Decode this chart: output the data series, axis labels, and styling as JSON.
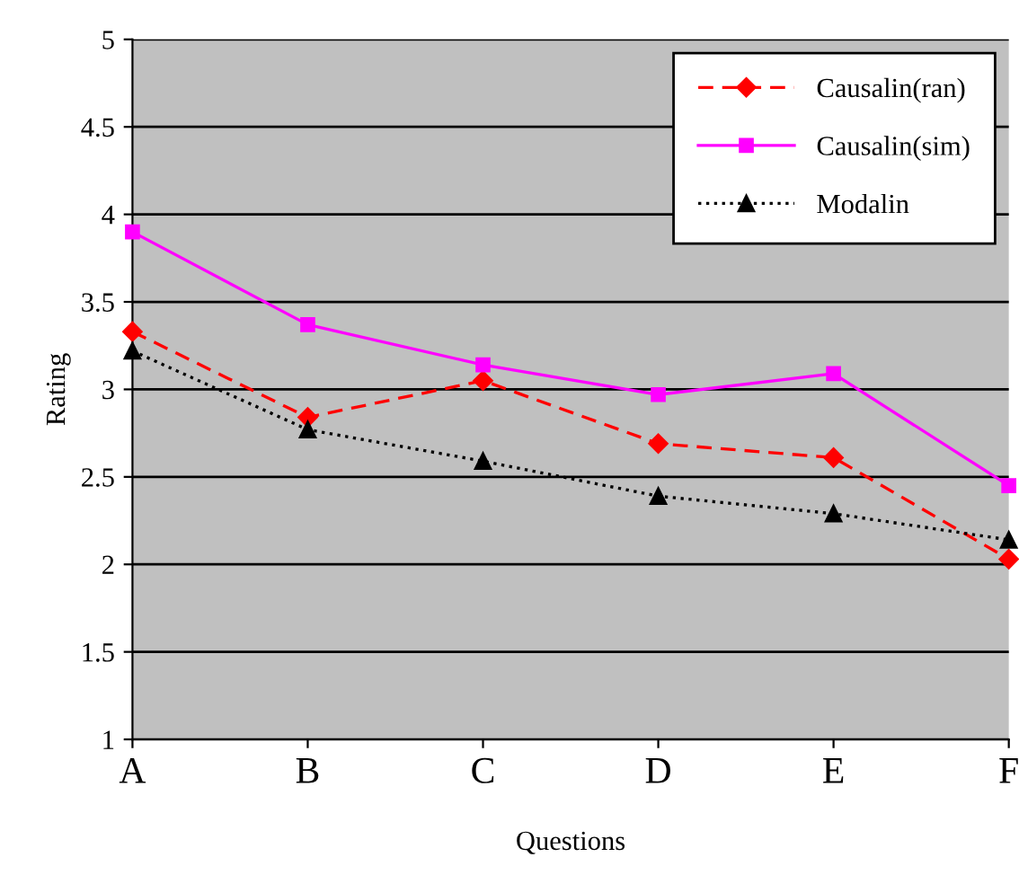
{
  "chart_data": {
    "type": "line",
    "xlabel": "Questions",
    "ylabel": "Rating",
    "categories": [
      "A",
      "B",
      "C",
      "D",
      "E",
      "F"
    ],
    "ylim": [
      1,
      5
    ],
    "yticks": [
      1,
      1.5,
      2,
      2.5,
      3,
      3.5,
      4,
      4.5,
      5
    ],
    "grid": "y",
    "legend": "top right",
    "series": [
      {
        "name": "Causalin(ran)",
        "color": "#ff0000",
        "marker": "diamond",
        "line_style": "dashed",
        "values": [
          3.33,
          2.84,
          3.05,
          2.69,
          2.61,
          2.03
        ]
      },
      {
        "name": "Causalin(sim)",
        "color": "#ff00ff",
        "marker": "square",
        "line_style": "solid",
        "values": [
          3.9,
          3.37,
          3.14,
          2.97,
          3.09,
          2.45
        ]
      },
      {
        "name": "Modalin",
        "color": "#000000",
        "marker": "triangle",
        "line_style": "dotted",
        "values": [
          3.22,
          2.77,
          2.59,
          2.39,
          2.29,
          2.14
        ]
      }
    ]
  }
}
